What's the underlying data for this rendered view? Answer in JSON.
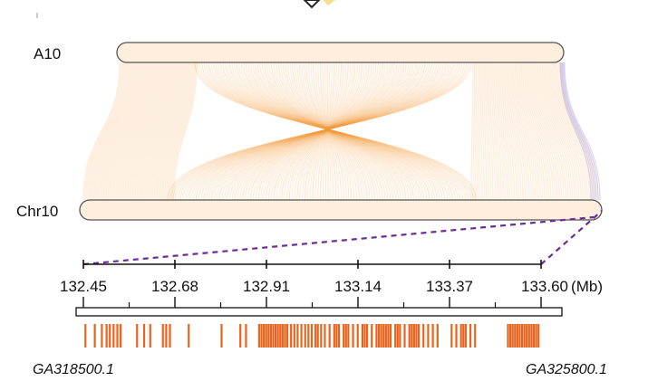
{
  "chromosomes": {
    "top": "A10",
    "bottom": "Chr10"
  },
  "scale": {
    "ticks": [
      "132.45",
      "132.68",
      "132.91",
      "133.14",
      "133.37",
      "133.60"
    ],
    "unit": "(Mb)"
  },
  "genes": {
    "left": "GA318500.1",
    "right": "GA325800.1"
  },
  "colors": {
    "link": "#f5a04a",
    "link_center": "#f09020",
    "gene_mark": "#e8641e",
    "inversion_edge": "#9a8fe0",
    "zoom_line": "#6a2a9a",
    "outline": "#555555"
  },
  "gene_positions": [
    0.01,
    0.03,
    0.045,
    0.055,
    0.062,
    0.07,
    0.078,
    0.085,
    0.12,
    0.135,
    0.148,
    0.175,
    0.182,
    0.19,
    0.23,
    0.3,
    0.34,
    0.352,
    0.38,
    0.385,
    0.39,
    0.395,
    0.4,
    0.405,
    0.41,
    0.415,
    0.42,
    0.425,
    0.43,
    0.435,
    0.44,
    0.448,
    0.455,
    0.462,
    0.47,
    0.478,
    0.485,
    0.492,
    0.5,
    0.505,
    0.512,
    0.52,
    0.53,
    0.54,
    0.545,
    0.55,
    0.56,
    0.565,
    0.57,
    0.58,
    0.59,
    0.6,
    0.605,
    0.61,
    0.62,
    0.63,
    0.635,
    0.64,
    0.645,
    0.65,
    0.655,
    0.66,
    0.67,
    0.675,
    0.68,
    0.69,
    0.7,
    0.705,
    0.71,
    0.715,
    0.72,
    0.73,
    0.74,
    0.75,
    0.76,
    0.79,
    0.8,
    0.81,
    0.815,
    0.82,
    0.83,
    0.84,
    0.91,
    0.915,
    0.92,
    0.925,
    0.93,
    0.935,
    0.94,
    0.945,
    0.95,
    0.955,
    0.96,
    0.965,
    0.97,
    0.975
  ]
}
